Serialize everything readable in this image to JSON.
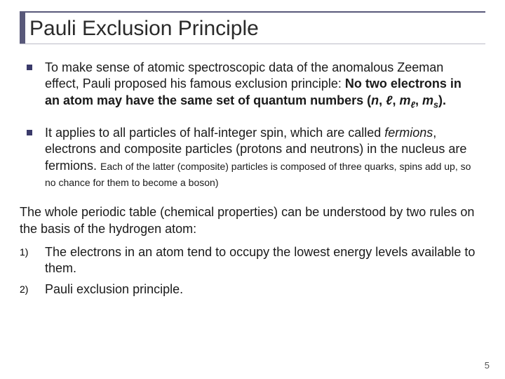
{
  "title": "Pauli Exclusion Principle",
  "bullets": [
    {
      "lead": "To make sense of atomic spectroscopic data of the anomalous Zeeman effect, Pauli proposed his famous exclusion principle: ",
      "bold": "No two electrons in an atom may have the same set of quantum numbers (",
      "qn_n": "n",
      "c1": ", ",
      "qn_l": "ℓ",
      "c2": ", ",
      "qn_ml_m": "m",
      "qn_ml_sub": "ℓ",
      "c3": ", ",
      "qn_ms_m": "m",
      "qn_ms_sub": "s",
      "close": ")."
    },
    {
      "p1": "It applies to all particles of half-integer spin, which are called ",
      "fermions": "fermions",
      "p2": ", electrons and composite particles (protons and neutrons) in the nucleus are fermions. ",
      "small": "Each of the latter (composite) particles is composed of three quarks, spins add up, so no chance for them to become a boson)"
    }
  ],
  "para": "The whole periodic table (chemical properties) can be understood by two rules on the basis of the hydrogen atom:",
  "numbered": [
    {
      "label": "1)",
      "text": "The electrons in an atom tend to occupy the lowest energy levels available to them."
    },
    {
      "label": "2)",
      "text": "Pauli exclusion principle."
    }
  ],
  "page_number": "5",
  "colors": {
    "accent": "#3a3a6a",
    "title_border": "#59597a"
  }
}
